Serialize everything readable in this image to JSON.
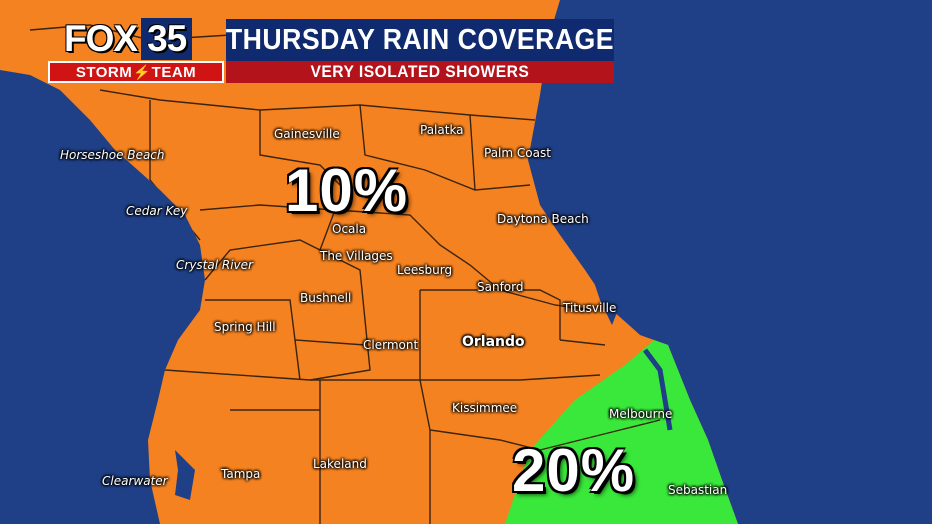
{
  "header": {
    "station_logo": "FOX",
    "station_number": "35",
    "team_label": "STORM",
    "team_label_2": "TEAM",
    "title": "THURSDAY RAIN COVERAGE",
    "subtitle": "VERY ISOLATED SHOWERS"
  },
  "colors": {
    "ocean": "#1f3f86",
    "land_10_percent": "#f58220",
    "land_20_percent": "#39e83a",
    "county_lines": "#3a2410",
    "header_navy": "#0f2a6e",
    "header_red": "#b3141c"
  },
  "coverage": {
    "north": "10%",
    "south": "20%"
  },
  "cities": {
    "gainesville": "Gainesville",
    "palatka": "Palatka",
    "palm_coast": "Palm Coast",
    "horseshoe_beach": "Horseshoe Beach",
    "cedar_key": "Cedar Key",
    "ocala": "Ocala",
    "daytona_beach": "Daytona Beach",
    "the_villages": "The Villages",
    "leesburg": "Leesburg",
    "crystal_river": "Crystal River",
    "sanford": "Sanford",
    "bushnell": "Bushnell",
    "titusville": "Titusville",
    "spring_hill": "Spring Hill",
    "clermont": "Clermont",
    "orlando": "Orlando",
    "kissimmee": "Kissimmee",
    "melbourne": "Melbourne",
    "clearwater": "Clearwater",
    "tampa": "Tampa",
    "lakeland": "Lakeland",
    "sebastian": "Sebastian"
  }
}
